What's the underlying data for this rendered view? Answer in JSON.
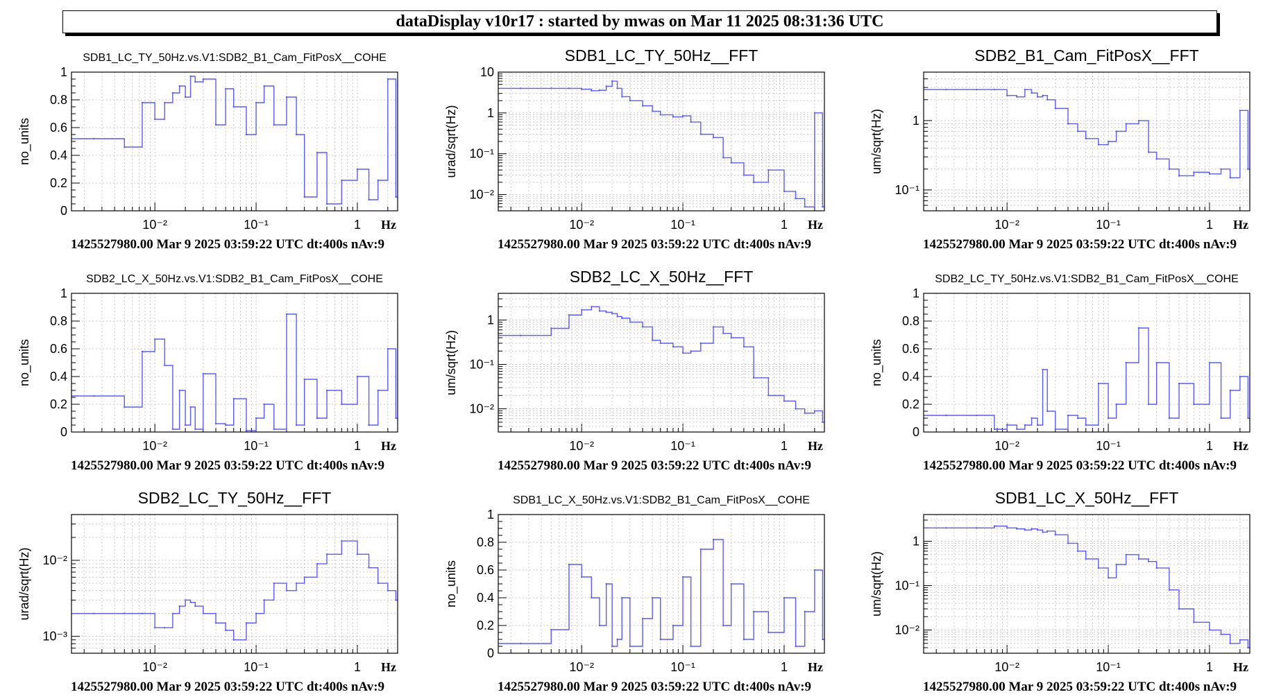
{
  "banner": {
    "title": "dataDisplay v10r17 : started by mwas on Mar 11 2025 08:31:36 UTC"
  },
  "colors": {
    "trace": "#5a5aff",
    "axis": "#000000",
    "grid": "#c8c8c8"
  },
  "footer_text": "1425527980.00 Mar 9 2025 03:59:22 UTC dt:400s nAv:9",
  "x_unit": "Hz",
  "chart_data": [
    {
      "type": "line",
      "scale": "linear",
      "title": "SDB1_LC_TY_50Hz.vs.V1:SDB2_B1_Cam_FitPosX__COHE",
      "ylabel": "no_units",
      "xlabel": "Hz",
      "xlim": [
        0.0015,
        2.5
      ],
      "ylim": [
        0,
        1
      ],
      "grid": true,
      "yticks": [
        0,
        0.2,
        0.4,
        0.6,
        0.8,
        1
      ],
      "yticklabels": [
        "0",
        "0.2",
        "0.4",
        "0.6",
        "0.8",
        "1"
      ],
      "xticks": [
        0.01,
        0.1,
        1
      ],
      "series": [
        {
          "x": [
            0.0025,
            0.005,
            0.0075,
            0.01,
            0.0125,
            0.015,
            0.0175,
            0.02,
            0.0225,
            0.025,
            0.03,
            0.04,
            0.05,
            0.06,
            0.08,
            0.1,
            0.12,
            0.15,
            0.2,
            0.25,
            0.3,
            0.4,
            0.5,
            0.7,
            1,
            1.3,
            1.6,
            2,
            2.4
          ],
          "values": [
            0.52,
            0.46,
            0.78,
            0.66,
            0.78,
            0.85,
            0.9,
            0.82,
            0.97,
            0.93,
            0.95,
            0.62,
            0.88,
            0.75,
            0.55,
            0.78,
            0.9,
            0.62,
            0.82,
            0.55,
            0.1,
            0.42,
            0.05,
            0.22,
            0.3,
            0.08,
            0.22,
            0.95,
            0.1
          ]
        }
      ]
    },
    {
      "type": "line",
      "scale": "log",
      "title": "SDB1_LC_TY_50Hz__FFT",
      "ylabel": "urad/sqrt(Hz)",
      "xlabel": "Hz",
      "xlim": [
        0.0015,
        2.5
      ],
      "ylim": [
        0.004,
        10
      ],
      "grid": true,
      "yticks": [
        0.01,
        0.1,
        1,
        10
      ],
      "yticklabels": [
        "10⁻²",
        "10⁻¹",
        "1",
        "10"
      ],
      "xticks": [
        0.01,
        0.1,
        1
      ],
      "series": [
        {
          "x": [
            0.0025,
            0.005,
            0.0075,
            0.01,
            0.0125,
            0.015,
            0.0175,
            0.02,
            0.0225,
            0.025,
            0.03,
            0.04,
            0.05,
            0.06,
            0.08,
            0.1,
            0.12,
            0.15,
            0.2,
            0.25,
            0.3,
            0.4,
            0.5,
            0.7,
            1,
            1.3,
            1.6,
            2,
            2.4
          ],
          "values": [
            4,
            4,
            4,
            3.8,
            3.5,
            3.6,
            4.5,
            6,
            4,
            2.5,
            2,
            1.5,
            1.1,
            0.9,
            0.8,
            0.85,
            0.6,
            0.3,
            0.25,
            0.08,
            0.06,
            0.03,
            0.02,
            0.04,
            0.012,
            0.008,
            0.005,
            1,
            0.005
          ]
        }
      ]
    },
    {
      "type": "line",
      "scale": "log",
      "title": "SDB2_B1_Cam_FitPosX__FFT",
      "ylabel": "um/sqrt(Hz)",
      "xlabel": "Hz",
      "xlim": [
        0.0015,
        2.5
      ],
      "ylim": [
        0.05,
        5
      ],
      "grid": true,
      "yticks": [
        0.1,
        1
      ],
      "yticklabels": [
        "10⁻¹",
        "1"
      ],
      "xticks": [
        0.01,
        0.1,
        1
      ],
      "series": [
        {
          "x": [
            0.0025,
            0.005,
            0.0075,
            0.01,
            0.0125,
            0.015,
            0.0175,
            0.02,
            0.0225,
            0.025,
            0.03,
            0.04,
            0.05,
            0.06,
            0.08,
            0.1,
            0.12,
            0.15,
            0.2,
            0.25,
            0.3,
            0.4,
            0.5,
            0.7,
            1,
            1.3,
            1.6,
            2,
            2.4
          ],
          "values": [
            2.8,
            2.8,
            2.8,
            2.3,
            2.2,
            2.8,
            2.5,
            2.2,
            2.3,
            2.0,
            1.5,
            0.9,
            0.7,
            0.55,
            0.45,
            0.5,
            0.7,
            0.9,
            1.0,
            0.35,
            0.28,
            0.2,
            0.16,
            0.18,
            0.17,
            0.2,
            0.15,
            1.4,
            0.2
          ]
        }
      ]
    },
    {
      "type": "line",
      "scale": "linear",
      "title": "SDB2_LC_X_50Hz.vs.V1:SDB2_B1_Cam_FitPosX__COHE",
      "ylabel": "no_units",
      "xlabel": "Hz",
      "xlim": [
        0.0015,
        2.5
      ],
      "ylim": [
        0,
        1
      ],
      "grid": true,
      "yticks": [
        0,
        0.2,
        0.4,
        0.6,
        0.8,
        1
      ],
      "yticklabels": [
        "0",
        "0.2",
        "0.4",
        "0.6",
        "0.8",
        "1"
      ],
      "xticks": [
        0.01,
        0.1,
        1
      ],
      "series": [
        {
          "x": [
            0.0025,
            0.005,
            0.0075,
            0.01,
            0.0125,
            0.015,
            0.0175,
            0.02,
            0.0225,
            0.025,
            0.03,
            0.04,
            0.05,
            0.06,
            0.08,
            0.1,
            0.12,
            0.15,
            0.2,
            0.25,
            0.3,
            0.4,
            0.5,
            0.7,
            1,
            1.3,
            1.6,
            2,
            2.4
          ],
          "values": [
            0.26,
            0.18,
            0.58,
            0.67,
            0.48,
            0.02,
            0.3,
            0.05,
            0.18,
            0.02,
            0.42,
            0.06,
            0.05,
            0.24,
            0.01,
            0.1,
            0.2,
            0.02,
            0.85,
            0.05,
            0.38,
            0.1,
            0.3,
            0.2,
            0.4,
            0.05,
            0.3,
            0.6,
            0.1
          ]
        }
      ]
    },
    {
      "type": "line",
      "scale": "log",
      "title": "SDB2_LC_X_50Hz__FFT",
      "ylabel": "um/sqrt(Hz)",
      "xlabel": "Hz",
      "xlim": [
        0.0015,
        2.5
      ],
      "ylim": [
        0.003,
        4
      ],
      "grid": true,
      "yticks": [
        0.01,
        0.1,
        1
      ],
      "yticklabels": [
        "10⁻²",
        "10⁻¹",
        "1"
      ],
      "xticks": [
        0.01,
        0.1,
        1
      ],
      "series": [
        {
          "x": [
            0.0025,
            0.005,
            0.0075,
            0.01,
            0.0125,
            0.015,
            0.0175,
            0.02,
            0.0225,
            0.025,
            0.03,
            0.04,
            0.05,
            0.06,
            0.08,
            0.1,
            0.12,
            0.15,
            0.2,
            0.25,
            0.3,
            0.4,
            0.5,
            0.7,
            1,
            1.3,
            1.6,
            2,
            2.4
          ],
          "values": [
            0.45,
            0.65,
            1.3,
            1.7,
            2.0,
            1.6,
            1.5,
            1.4,
            1.2,
            1.1,
            0.9,
            0.7,
            0.35,
            0.3,
            0.25,
            0.18,
            0.2,
            0.3,
            0.7,
            0.5,
            0.4,
            0.25,
            0.05,
            0.02,
            0.015,
            0.01,
            0.008,
            0.009,
            0.005
          ]
        }
      ]
    },
    {
      "type": "line",
      "scale": "linear",
      "title": "SDB2_LC_TY_50Hz.vs.V1:SDB2_B1_Cam_FitPosX__COHE",
      "ylabel": "no_units",
      "xlabel": "Hz",
      "xlim": [
        0.0015,
        2.5
      ],
      "ylim": [
        0,
        1
      ],
      "grid": true,
      "yticks": [
        0,
        0.2,
        0.4,
        0.6,
        0.8,
        1
      ],
      "yticklabels": [
        "0",
        "0.2",
        "0.4",
        "0.6",
        "0.8",
        "1"
      ],
      "xticks": [
        0.01,
        0.1,
        1
      ],
      "series": [
        {
          "x": [
            0.0025,
            0.005,
            0.0075,
            0.01,
            0.0125,
            0.015,
            0.0175,
            0.02,
            0.0225,
            0.025,
            0.03,
            0.04,
            0.05,
            0.06,
            0.08,
            0.1,
            0.12,
            0.15,
            0.2,
            0.25,
            0.3,
            0.4,
            0.5,
            0.7,
            1,
            1.3,
            1.6,
            2,
            2.4
          ],
          "values": [
            0.12,
            0.12,
            0.02,
            0.05,
            0.02,
            0.05,
            0.1,
            0.05,
            0.45,
            0.15,
            0.02,
            0.12,
            0.1,
            0.05,
            0.35,
            0.1,
            0.2,
            0.5,
            0.75,
            0.2,
            0.5,
            0.1,
            0.35,
            0.2,
            0.5,
            0.1,
            0.3,
            0.4,
            0.1
          ]
        }
      ]
    },
    {
      "type": "line",
      "scale": "log",
      "title": "SDB2_LC_TY_50Hz__FFT",
      "ylabel": "urad/sqrt(Hz)",
      "xlabel": "Hz",
      "xlim": [
        0.0015,
        2.5
      ],
      "ylim": [
        0.0006,
        0.04
      ],
      "grid": true,
      "yticks": [
        0.001,
        0.01
      ],
      "yticklabels": [
        "10⁻³",
        "10⁻²"
      ],
      "xticks": [
        0.01,
        0.1,
        1
      ],
      "series": [
        {
          "x": [
            0.0025,
            0.005,
            0.0075,
            0.01,
            0.0125,
            0.015,
            0.0175,
            0.02,
            0.0225,
            0.025,
            0.03,
            0.04,
            0.05,
            0.06,
            0.08,
            0.1,
            0.12,
            0.15,
            0.2,
            0.25,
            0.3,
            0.4,
            0.5,
            0.7,
            1,
            1.3,
            1.6,
            2,
            2.4
          ],
          "values": [
            0.002,
            0.002,
            0.002,
            0.0013,
            0.0013,
            0.002,
            0.0025,
            0.003,
            0.0028,
            0.0025,
            0.002,
            0.0015,
            0.0012,
            0.0009,
            0.0015,
            0.002,
            0.003,
            0.005,
            0.004,
            0.005,
            0.006,
            0.009,
            0.012,
            0.018,
            0.012,
            0.008,
            0.005,
            0.004,
            0.003
          ]
        }
      ]
    },
    {
      "type": "line",
      "scale": "linear",
      "title": "SDB1_LC_X_50Hz.vs.V1:SDB2_B1_Cam_FitPosX__COHE",
      "ylabel": "no_units",
      "xlabel": "Hz",
      "xlim": [
        0.0015,
        2.5
      ],
      "ylim": [
        0,
        1
      ],
      "grid": true,
      "yticks": [
        0,
        0.2,
        0.4,
        0.6,
        0.8,
        1
      ],
      "yticklabels": [
        "0",
        "0.2",
        "0.4",
        "0.6",
        "0.8",
        "1"
      ],
      "xticks": [
        0.01,
        0.1,
        1
      ],
      "series": [
        {
          "x": [
            0.0025,
            0.005,
            0.0075,
            0.01,
            0.0125,
            0.015,
            0.0175,
            0.02,
            0.0225,
            0.025,
            0.03,
            0.04,
            0.05,
            0.06,
            0.08,
            0.1,
            0.12,
            0.15,
            0.2,
            0.25,
            0.3,
            0.4,
            0.5,
            0.7,
            1,
            1.3,
            1.6,
            2,
            2.4
          ],
          "values": [
            0.07,
            0.17,
            0.64,
            0.55,
            0.4,
            0.2,
            0.5,
            0.05,
            0.1,
            0.4,
            0.05,
            0.25,
            0.4,
            0.1,
            0.2,
            0.55,
            0.05,
            0.75,
            0.82,
            0.2,
            0.5,
            0.1,
            0.3,
            0.15,
            0.4,
            0.05,
            0.3,
            0.6,
            0.1
          ]
        }
      ]
    },
    {
      "type": "line",
      "scale": "log",
      "title": "SDB1_LC_X_50Hz__FFT",
      "ylabel": "um/sqrt(Hz)",
      "xlabel": "Hz",
      "xlim": [
        0.0015,
        2.5
      ],
      "ylim": [
        0.003,
        4
      ],
      "grid": true,
      "yticks": [
        0.01,
        0.1,
        1
      ],
      "yticklabels": [
        "10⁻²",
        "10⁻¹",
        "1"
      ],
      "xticks": [
        0.01,
        0.1,
        1
      ],
      "series": [
        {
          "x": [
            0.0025,
            0.005,
            0.0075,
            0.01,
            0.0125,
            0.015,
            0.0175,
            0.02,
            0.0225,
            0.025,
            0.03,
            0.04,
            0.05,
            0.06,
            0.08,
            0.1,
            0.12,
            0.15,
            0.2,
            0.25,
            0.3,
            0.4,
            0.5,
            0.7,
            1,
            1.3,
            1.6,
            2,
            2.4
          ],
          "values": [
            2.0,
            2.0,
            2.2,
            2.0,
            1.9,
            1.8,
            1.9,
            1.8,
            1.6,
            1.7,
            1.4,
            0.9,
            0.6,
            0.4,
            0.25,
            0.15,
            0.3,
            0.5,
            0.4,
            0.35,
            0.25,
            0.08,
            0.03,
            0.015,
            0.01,
            0.008,
            0.005,
            0.006,
            0.004
          ]
        }
      ]
    }
  ]
}
